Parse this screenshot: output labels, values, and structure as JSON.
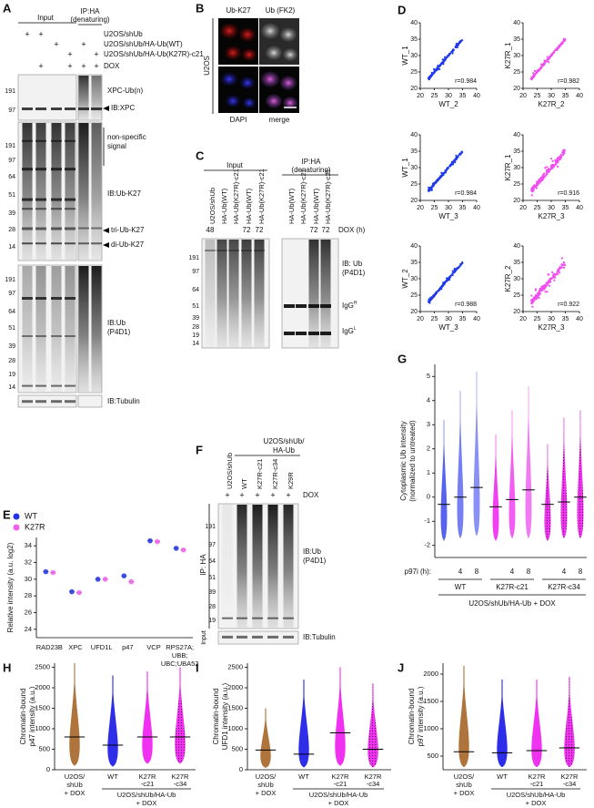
{
  "panels": {
    "a": {
      "label": "A",
      "input": "Input",
      "ip": [
        "IP:HA",
        "(denaturing)"
      ],
      "sign": "+",
      "conditions": [
        {
          "name": "U2OS/shUb",
          "lanes": [
            true,
            true,
            false,
            false,
            false,
            false
          ]
        },
        {
          "name": "U2OS/shUb/HA-Ub(WT)",
          "lanes": [
            false,
            false,
            true,
            false,
            true,
            false
          ]
        },
        {
          "name": "U2OS/shUb/HA-Ub(K27R)-c21",
          "lanes": [
            false,
            false,
            false,
            true,
            false,
            true
          ]
        },
        {
          "name": "DOX",
          "lanes": [
            false,
            true,
            false,
            true,
            true,
            true
          ]
        }
      ],
      "blot1": {
        "markers": [
          191,
          97
        ],
        "labels": [
          "XPC-Ub(n)",
          "IB:XPC"
        ]
      },
      "blot2": {
        "markers": [
          191,
          97,
          64,
          51,
          39,
          28,
          14
        ],
        "labels": [
          "non-specific",
          "signal",
          "IB:Ub-K27",
          "tri-Ub-K27",
          "di-Ub-K27"
        ]
      },
      "blot3": {
        "markers": [
          191,
          97,
          64,
          51,
          39,
          28,
          19,
          14
        ],
        "labels": [
          "IB:Ub",
          "(P4D1)"
        ]
      },
      "blot4": {
        "labels": [
          "IB:Tubulin"
        ]
      }
    },
    "b": {
      "label": "B",
      "cols": [
        "Ub-K27",
        "Ub (FK2)"
      ],
      "row": "U2OS",
      "bottom": [
        "DAPI",
        "merge"
      ]
    },
    "c": {
      "label": "C",
      "input": "Input",
      "ip": [
        "IP:HA",
        "(denaturing)"
      ],
      "lanes": [
        "U2OS/shUb",
        "HA-Ub(WT)",
        "HA-Ub(K27R)-c21",
        "HA-Ub(WT)",
        "HA-Ub(K27R)-c21",
        "HA-Ub(WT)",
        "HA-Ub(K27R)-c21",
        "HA-Ub(WT)",
        "HA-Ub(K27R)-c21"
      ],
      "dox": [
        48,
        null,
        null,
        72,
        72,
        null,
        null,
        72,
        72
      ],
      "dox_label": "DOX (h)",
      "markers": [
        191,
        97,
        64,
        51,
        39,
        28,
        19,
        14
      ],
      "ib": [
        "IB: Ub",
        "(P4D1)"
      ],
      "igg_h": {
        "base": "IgG",
        "sup": "H"
      },
      "igg_l": {
        "base": "IgG",
        "sup": "L"
      }
    },
    "d": {
      "label": "D",
      "xlim": [
        20,
        40
      ],
      "ylim": [
        20,
        40
      ],
      "ticks": [
        20,
        25,
        30,
        35,
        40
      ],
      "plots": [
        {
          "y": "WT_1",
          "x": "WT_2",
          "r": "r=0.984",
          "color": "#1f3be8"
        },
        {
          "y": "K27R_1",
          "x": "K27R_2",
          "r": "r=0.982",
          "color": "#f04ff0"
        },
        {
          "y": "WT_1",
          "x": "WT_3",
          "r": "r=0.984",
          "color": "#1f3be8"
        },
        {
          "y": "K27R_1",
          "x": "K27R_3",
          "r": "r=0.916",
          "color": "#f04ff0"
        },
        {
          "y": "WT_2",
          "x": "WT_3",
          "r": "r=0.988",
          "color": "#1f3be8"
        },
        {
          "y": "K27R_2",
          "x": "K27R_3",
          "r": "r=0.922",
          "color": "#f04ff0"
        }
      ]
    },
    "e": {
      "label": "E",
      "type": "dot",
      "ylabel": "Relative intensity (a.u. log2)",
      "ylim": [
        23,
        35
      ],
      "yticks": [
        24,
        26,
        28,
        30,
        32,
        34
      ],
      "categories": [
        [
          "RAD23B"
        ],
        [
          "XPC"
        ],
        [
          "UFD1L"
        ],
        [
          "p47"
        ],
        [
          "VCP"
        ],
        [
          "RPS27A;",
          "UBB;",
          "UBC;UBA52"
        ]
      ],
      "series": [
        {
          "name": "WT",
          "color": "#2233e8",
          "values": [
            30.9,
            28.5,
            30.0,
            30.4,
            34.6,
            33.7
          ]
        },
        {
          "name": "K27R",
          "color": "#f060f0",
          "values": [
            30.8,
            28.4,
            30.0,
            29.7,
            34.5,
            33.5
          ]
        }
      ]
    },
    "f": {
      "label": "F",
      "header": [
        "U2OS/shUb/",
        "HA-Ub"
      ],
      "lanes": [
        "U2OS/shUb",
        "WT",
        "K27R-c21",
        "K27R-c34",
        "K29R"
      ],
      "sign": "+",
      "dox": "DOX",
      "markers": [
        191,
        97,
        64,
        51,
        39,
        28,
        19
      ],
      "ip": "IP: HA",
      "input": "Input",
      "ib": [
        "IB:Ub",
        "(P4D1)"
      ],
      "ib_input": "IB:Tubulin"
    },
    "g": {
      "label": "G",
      "ylabel": [
        "Cytoplasmic Ub intensity",
        "(normalized to untreated)"
      ],
      "ylim": [
        -2.5,
        5.5
      ],
      "yticks": [
        -2,
        -1,
        0,
        1,
        2,
        3,
        4,
        5
      ],
      "treatment": "p97i (h):",
      "times": [
        4,
        8
      ],
      "groups": [
        "WT",
        "K27R-c21",
        "K27R-c34"
      ],
      "footer": "U2OS/shUb/HA-Ub + DOX"
    },
    "h": {
      "label": "H",
      "ylabel": [
        "Chromatin-bound",
        "p47 intensity (a.u.)"
      ],
      "ylim": [
        0,
        2600
      ],
      "yticks": [
        0,
        500,
        1000,
        1500,
        2000,
        2500
      ],
      "control": [
        "U2OS/",
        "shUb",
        "+ DOX"
      ],
      "lines": [
        [
          "WT"
        ],
        [
          "K27R",
          "-c21"
        ],
        [
          "K27R",
          "-c34"
        ]
      ],
      "group": "U2OS/shUb/HA-Ub",
      "group_sub": "+ DOX"
    },
    "i": {
      "label": "I",
      "ylabel": [
        "Chromatin-bound",
        "UFD1 intensity (a.u.)"
      ],
      "ylim": [
        0,
        2600
      ],
      "yticks": [
        0,
        500,
        1000,
        1500,
        2000,
        2500
      ],
      "control": [
        "U2OS/",
        "shUb",
        "+ DOX"
      ],
      "lines": [
        [
          "WT"
        ],
        [
          "K27R",
          "-c21"
        ],
        [
          "K27R",
          "-c34"
        ]
      ],
      "group": "U2OS/shUb/HA-Ub",
      "group_sub": "+ DOX"
    },
    "j": {
      "label": "J",
      "ylabel": [
        "Chromatin-bound",
        "p97 intensity (a.u.)"
      ],
      "ylim": [
        250,
        2200
      ],
      "yticks": [
        500,
        1000,
        1500,
        2000
      ],
      "control": [
        "U2OS/",
        "shUb",
        "+ DOX"
      ],
      "lines": [
        [
          "WT"
        ],
        [
          "K27R",
          "-c21"
        ],
        [
          "K27R",
          "-c34"
        ]
      ],
      "group": "U2OS/shUb/HA-Ub",
      "group_sub": "+ DOX"
    }
  }
}
